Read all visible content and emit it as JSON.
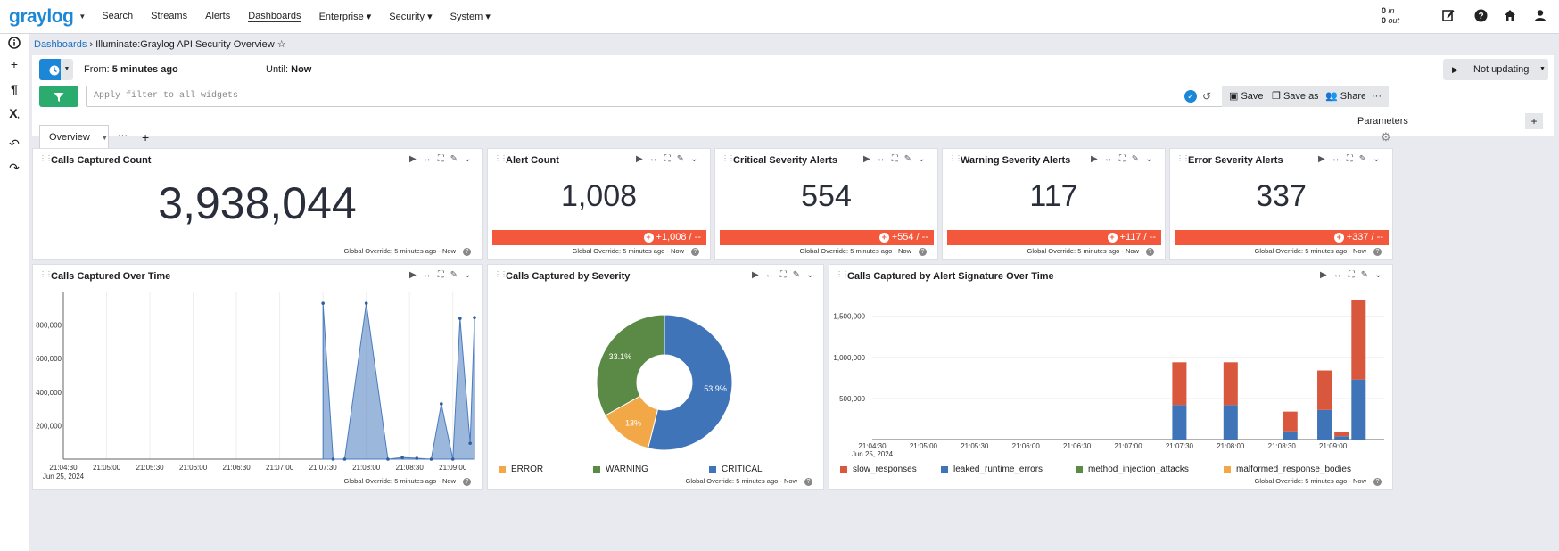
{
  "nav": {
    "logo": "graylog",
    "items": [
      {
        "label": "Search"
      },
      {
        "label": "Streams"
      },
      {
        "label": "Alerts"
      },
      {
        "label": "Dashboards"
      },
      {
        "label": "Enterprise ▾"
      },
      {
        "label": "Security ▾"
      },
      {
        "label": "System ▾"
      }
    ],
    "throughput_in": "0",
    "throughput_in_label": "in",
    "throughput_out": "0",
    "throughput_out_label": "out"
  },
  "breadcrumb": {
    "root": "Dashboards",
    "separator": "›",
    "current": "Illuminate:Graylog API Security Overview"
  },
  "search": {
    "from_label": "From:",
    "from_value": "5 minutes ago",
    "until_label": "Until:",
    "until_value": "Now",
    "refresh_label": "Not updating",
    "query_placeholder": "Apply filter to all widgets",
    "save_label": "Save",
    "save_as_label": "Save as",
    "share_label": "Share",
    "more_label": "···",
    "parameters_label": "Parameters"
  },
  "tabs": {
    "active": "Overview",
    "more": "···"
  },
  "footer_text": "Global Override: 5 minutes ago - Now",
  "stat_widgets": [
    {
      "title": "Calls Captured Count",
      "value": "3,938,044"
    },
    {
      "title": "Alert Count",
      "value": "1,008",
      "trend": "+1,008 / --"
    },
    {
      "title": "Critical Severity Alerts",
      "value": "554",
      "trend": "+554 / --"
    },
    {
      "title": "Warning Severity Alerts",
      "value": "117",
      "trend": "+117 / --"
    },
    {
      "title": "Error Severity Alerts",
      "value": "337",
      "trend": "+337 / --"
    }
  ],
  "chart_widgets": {
    "over_time_title": "Calls Captured Over Time",
    "severity_title": "Calls Captured by Severity",
    "signature_title": "Calls Captured by Alert Signature Over Time"
  },
  "chart_data": [
    {
      "type": "area",
      "x_ticks": [
        "21:04:30",
        "21:05:00",
        "21:05:30",
        "21:06:00",
        "21:06:30",
        "21:07:00",
        "21:07:30",
        "21:08:00",
        "21:08:30",
        "21:09:00"
      ],
      "x_date_label": "Jun 25, 2024",
      "y_ticks": [
        "200,000",
        "400,000",
        "600,000",
        "800,000"
      ],
      "ylim": [
        0,
        1000000
      ],
      "x": [
        "21:07:30",
        "21:07:37",
        "21:07:45",
        "21:08:00",
        "21:08:15",
        "21:08:25",
        "21:08:35",
        "21:08:45",
        "21:08:52",
        "21:09:00",
        "21:09:05",
        "21:09:12"
      ],
      "values": [
        930000,
        0,
        0,
        930000,
        0,
        10000,
        5000,
        0,
        330000,
        0,
        840000,
        95000
      ],
      "end_point": {
        "x": "21:09:15",
        "y": 845000
      },
      "color": "#4a7bbf"
    },
    {
      "type": "pie",
      "slices": [
        {
          "label": "CRITICAL",
          "percent": 53.9,
          "color": "#3f74b8"
        },
        {
          "label": "ERROR",
          "percent": 13.0,
          "color": "#f3a848"
        },
        {
          "label": "WARNING",
          "percent": 33.1,
          "color": "#5a8a45"
        }
      ],
      "slice_labels": [
        "53.9%",
        "13%",
        "33.1%"
      ],
      "legend": [
        "ERROR",
        "WARNING",
        "CRITICAL"
      ]
    },
    {
      "type": "bar",
      "stacked": true,
      "x_ticks": [
        "21:04:30",
        "21:05:00",
        "21:05:30",
        "21:06:00",
        "21:06:30",
        "21:07:00",
        "21:07:30",
        "21:08:00",
        "21:08:30",
        "21:09:00"
      ],
      "x_date_label": "Jun 25, 2024",
      "y_ticks": [
        "500,000",
        "1,000,000",
        "1,500,000"
      ],
      "ylim": [
        0,
        1800000
      ],
      "x": [
        "21:07:30",
        "21:08:00",
        "21:08:35",
        "21:08:55",
        "21:09:05",
        "21:09:15"
      ],
      "series": [
        {
          "name": "leaked_runtime_errors",
          "color": "#3f74b8",
          "values": [
            420000,
            420000,
            100000,
            360000,
            40000,
            730000
          ]
        },
        {
          "name": "slow_responses",
          "color": "#d9573c",
          "values": [
            520000,
            520000,
            240000,
            480000,
            50000,
            970000
          ]
        }
      ],
      "legend": [
        {
          "name": "slow_responses",
          "color": "#d9573c"
        },
        {
          "name": "leaked_runtime_errors",
          "color": "#3f74b8"
        },
        {
          "name": "method_injection_attacks",
          "color": "#5a8a45"
        },
        {
          "name": "malformed_response_bodies",
          "color": "#f3a848"
        }
      ]
    }
  ]
}
